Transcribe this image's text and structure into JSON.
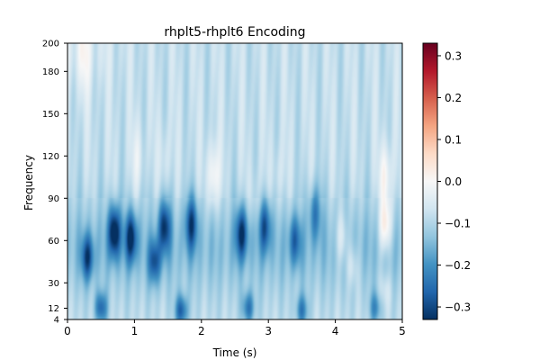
{
  "chart_data": {
    "type": "heatmap",
    "title": "rhplt5-rhplt6 Encoding",
    "xlabel": "Time (s)",
    "ylabel": "Frequency",
    "xlim": [
      0,
      5
    ],
    "ylim": [
      4,
      200
    ],
    "x_ticks": [
      0,
      1,
      2,
      3,
      4,
      5
    ],
    "y_ticks": [
      4,
      12,
      30,
      60,
      90,
      120,
      150,
      180,
      200
    ],
    "colorbar": {
      "cmap": "RdBu_r",
      "vmin": -0.33,
      "vmax": 0.33,
      "ticks": [
        "0.3",
        "0.2",
        "0.1",
        "0.0",
        "−0.1",
        "−0.2",
        "−0.3"
      ],
      "tick_values": [
        0.3,
        0.2,
        0.1,
        0.0,
        -0.1,
        -0.2,
        -0.3
      ]
    },
    "features": [
      {
        "t": 0.7,
        "f": 66,
        "v": -0.3
      },
      {
        "t": 0.95,
        "f": 62,
        "v": -0.26
      },
      {
        "t": 1.45,
        "f": 70,
        "v": -0.24
      },
      {
        "t": 1.85,
        "f": 72,
        "v": -0.22
      },
      {
        "t": 2.6,
        "f": 65,
        "v": -0.24
      },
      {
        "t": 2.95,
        "f": 70,
        "v": -0.2
      },
      {
        "t": 0.3,
        "f": 48,
        "v": -0.22
      },
      {
        "t": 1.3,
        "f": 45,
        "v": -0.2
      },
      {
        "t": 3.4,
        "f": 60,
        "v": -0.16
      },
      {
        "t": 3.7,
        "f": 80,
        "v": -0.14
      },
      {
        "t": 0.5,
        "f": 12,
        "v": -0.2
      },
      {
        "t": 1.7,
        "f": 10,
        "v": -0.22
      },
      {
        "t": 2.7,
        "f": 12,
        "v": -0.18
      },
      {
        "t": 3.5,
        "f": 10,
        "v": -0.16
      },
      {
        "t": 4.6,
        "f": 12,
        "v": -0.14
      },
      {
        "t": 2.18,
        "f": 105,
        "v": 0.12
      },
      {
        "t": 4.75,
        "f": 70,
        "v": 0.18
      },
      {
        "t": 4.75,
        "f": 105,
        "v": 0.12
      },
      {
        "t": 4.1,
        "f": 62,
        "v": 0.1
      },
      {
        "t": 4.25,
        "f": 42,
        "v": 0.08
      },
      {
        "t": 4.75,
        "f": 25,
        "v": 0.06
      },
      {
        "t": 0.25,
        "f": 190,
        "v": 0.06
      },
      {
        "t": 1.05,
        "f": 118,
        "v": 0.06
      },
      {
        "t": 1.45,
        "f": 118,
        "v": 0.04
      },
      {
        "t": 3.15,
        "f": 105,
        "v": 0.04
      },
      {
        "t": 2.8,
        "f": 90,
        "v": 0.04
      }
    ]
  }
}
